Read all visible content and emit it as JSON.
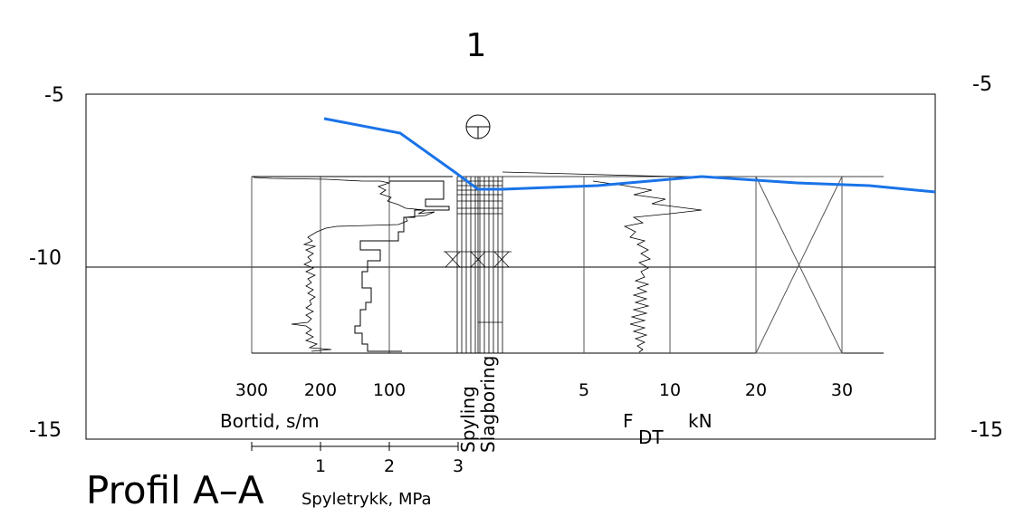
{
  "profile": {
    "title": "Profil A–A",
    "borehole_id": "1"
  },
  "elevation_axis": {
    "ticks": [
      "-5",
      "-10",
      "-15"
    ],
    "values": [
      -5,
      -10,
      -15
    ]
  },
  "bortid": {
    "label": "Bortid, s/m",
    "ticks": [
      "300",
      "200",
      "100"
    ]
  },
  "spyletrykk": {
    "label": "Spyletrykk, MPa",
    "ticks": [
      "1",
      "2",
      "3"
    ]
  },
  "method_labels": {
    "spyling": "Spyling",
    "slagboring": "Slagboring"
  },
  "force": {
    "label_main": "F",
    "label_sub": "DT",
    "unit": "kN",
    "ticks": [
      "5",
      "10",
      "20",
      "30"
    ]
  },
  "colors": {
    "terrain": "#1a73e8",
    "ink": "#000000",
    "grid": "#555555"
  },
  "terrain_profile": {
    "description_units": "x in drawing position order, elevation in m",
    "points": [
      [
        0.0,
        -5.9
      ],
      [
        0.12,
        -6.3
      ],
      [
        0.245,
        -7.85
      ],
      [
        0.31,
        -7.85
      ],
      [
        0.6,
        -7.55
      ],
      [
        0.8,
        -7.7
      ],
      [
        1.0,
        -7.95
      ]
    ]
  }
}
